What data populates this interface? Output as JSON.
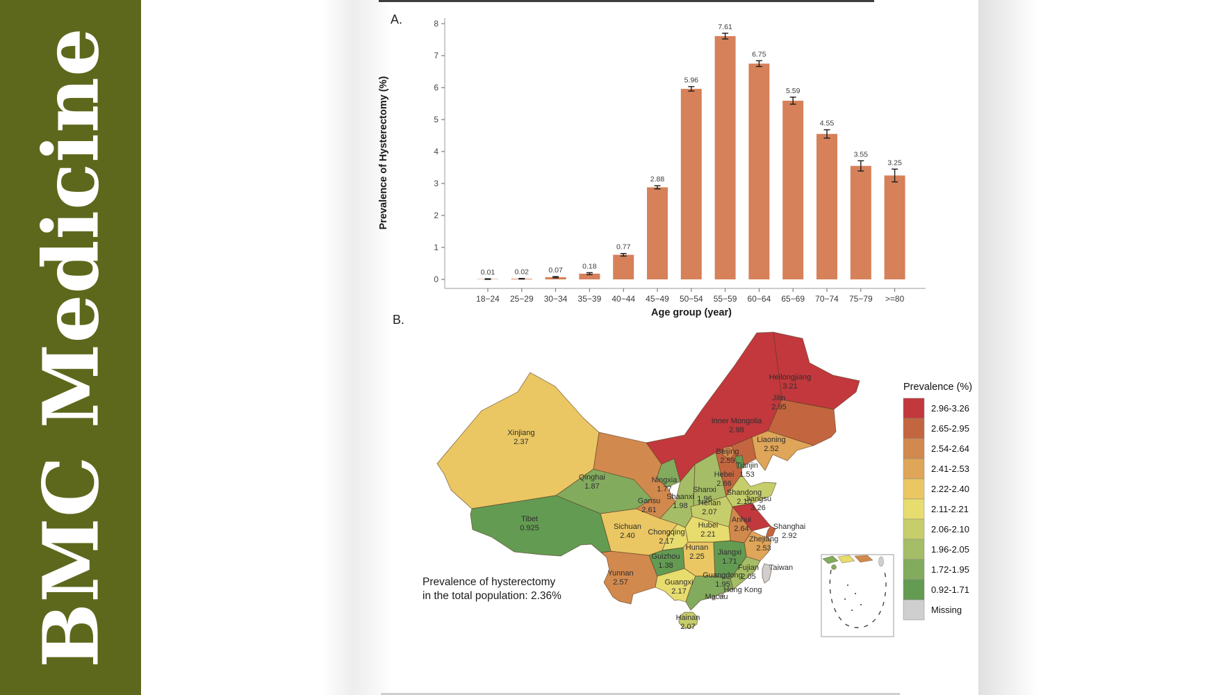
{
  "page": {
    "background": "#ffffff"
  },
  "sidebar": {
    "journal_title": "BMC Medicine",
    "bg_color": "#5e681d",
    "text_color": "#ffffff"
  },
  "panel_a": {
    "label": "A."
  },
  "panel_b": {
    "label": "B.",
    "caption_line1": "Prevalence of hysterectomy",
    "caption_line2": "in the total population: 2.36%"
  },
  "chart_data": [
    {
      "type": "bar",
      "panel": "A",
      "xlabel": "Age group (year)",
      "ylabel": "Prevalence of Hysterectomy (%)",
      "categories": [
        "18−24",
        "25−29",
        "30−34",
        "35−39",
        "40−44",
        "45−49",
        "50−54",
        "55−59",
        "60−64",
        "65−69",
        "70−74",
        "75−79",
        ">=80"
      ],
      "values": [
        0.01,
        0.02,
        0.07,
        0.18,
        0.77,
        2.88,
        5.96,
        7.61,
        6.75,
        5.59,
        4.55,
        3.55,
        3.25
      ],
      "value_labels": [
        "0.01",
        "0.02",
        "0.07",
        "0.18",
        "0.77",
        "2.88",
        "5.96",
        "7.61",
        "6.75",
        "5.59",
        "4.55",
        "3.55",
        "3.25"
      ],
      "errors": [
        0.01,
        0.01,
        0.02,
        0.03,
        0.04,
        0.05,
        0.07,
        0.09,
        0.09,
        0.11,
        0.13,
        0.16,
        0.2
      ],
      "bar_color": "#d6815a",
      "ylim": [
        0,
        8
      ],
      "y_ticks": [
        0,
        1,
        2,
        3,
        4,
        5,
        6,
        7,
        8
      ],
      "grid": false,
      "legend_position": "none"
    },
    {
      "type": "choropleth",
      "panel": "B",
      "legend_title": "Prevalence (%)",
      "annotation": "Prevalence of hysterectomy in the total population: 2.36%",
      "classes": [
        {
          "label": "2.96-3.26",
          "color": "#c2383d"
        },
        {
          "label": "2.65-2.95",
          "color": "#c3663f"
        },
        {
          "label": "2.54-2.64",
          "color": "#d2894e"
        },
        {
          "label": "2.41-2.53",
          "color": "#dfa558"
        },
        {
          "label": "2.22-2.40",
          "color": "#eac763"
        },
        {
          "label": "2.11-2.21",
          "color": "#e7dc6e"
        },
        {
          "label": "2.06-2.10",
          "color": "#c6ce6b"
        },
        {
          "label": "1.96-2.05",
          "color": "#a5bd66"
        },
        {
          "label": "1.72-1.95",
          "color": "#83ab5e"
        },
        {
          "label": "0.92-1.71",
          "color": "#639b52"
        },
        {
          "label": "Missing",
          "color": "#cfcfcf"
        }
      ],
      "regions": [
        {
          "id": "heilongjiang",
          "name": "Heilongjiang",
          "value": "3.21",
          "cls": 0
        },
        {
          "id": "jiangsu",
          "name": "Jiangsu",
          "value": "3.26",
          "cls": 0
        },
        {
          "id": "inner_mongolia",
          "name": "Inner Mongolia",
          "value": "2.98",
          "cls": 0
        },
        {
          "id": "jilin",
          "name": "Jilin",
          "value": "2.95",
          "cls": 1
        },
        {
          "id": "shanghai",
          "name": "Shanghai",
          "value": "2.92",
          "cls": 1
        },
        {
          "id": "hebei",
          "name": "Hebei",
          "value": "2.66",
          "cls": 1
        },
        {
          "id": "anhui",
          "name": "Anhui",
          "value": "2.64",
          "cls": 2
        },
        {
          "id": "gansu",
          "name": "Gansu",
          "value": "2.61",
          "cls": 2
        },
        {
          "id": "beijing",
          "name": "Beijing",
          "value": "2.59",
          "cls": 2
        },
        {
          "id": "yunnan",
          "name": "Yunnan",
          "value": "2.57",
          "cls": 2
        },
        {
          "id": "zhejiang",
          "name": "Zhejiang",
          "value": "2.53",
          "cls": 3
        },
        {
          "id": "liaoning",
          "name": "Liaoning",
          "value": "2.52",
          "cls": 3
        },
        {
          "id": "sichuan",
          "name": "Sichuan",
          "value": "2.40",
          "cls": 4
        },
        {
          "id": "xinjiang",
          "name": "Xinjiang",
          "value": "2.37",
          "cls": 4
        },
        {
          "id": "hunan",
          "name": "Hunan",
          "value": "2.25",
          "cls": 4
        },
        {
          "id": "hubei",
          "name": "Hubei",
          "value": "2.21",
          "cls": 5
        },
        {
          "id": "guangxi",
          "name": "Guangxi",
          "value": "2.17",
          "cls": 5
        },
        {
          "id": "chongqing",
          "name": "Chongqing",
          "value": "2.17",
          "cls": 5
        },
        {
          "id": "shandong",
          "name": "Shandong",
          "value": "2.10",
          "cls": 6
        },
        {
          "id": "henan",
          "name": "Henan",
          "value": "2.07",
          "cls": 6
        },
        {
          "id": "hainan",
          "name": "Hainan",
          "value": "2.07",
          "cls": 6
        },
        {
          "id": "fujian",
          "name": "Fujian",
          "value": "2.05",
          "cls": 7
        },
        {
          "id": "shaanxi",
          "name": "Shaanxi",
          "value": "1.98",
          "cls": 7
        },
        {
          "id": "shanxi",
          "name": "Shanxi",
          "value": "1.96",
          "cls": 7
        },
        {
          "id": "guangdong",
          "name": "Guangdong",
          "value": "1.95",
          "cls": 8
        },
        {
          "id": "qinghai",
          "name": "Qinghai",
          "value": "1.87",
          "cls": 8
        },
        {
          "id": "ningxia",
          "name": "Ningxia",
          "value": "1.77",
          "cls": 8
        },
        {
          "id": "jiangxi",
          "name": "Jiangxi",
          "value": "1.71",
          "cls": 9
        },
        {
          "id": "tianjin",
          "name": "Tianjin",
          "value": "1.53",
          "cls": 9
        },
        {
          "id": "guizhou",
          "name": "Guizhou",
          "value": "1.38",
          "cls": 9
        },
        {
          "id": "tibet",
          "name": "Tibet",
          "value": "0.925",
          "cls": 9
        },
        {
          "id": "taiwan",
          "name": "Taiwan",
          "value": null,
          "cls": 10
        },
        {
          "id": "hongkong",
          "name": "Hong Kong",
          "value": null,
          "cls": 10
        },
        {
          "id": "macau",
          "name": "Macau",
          "value": null,
          "cls": 10
        }
      ]
    }
  ]
}
